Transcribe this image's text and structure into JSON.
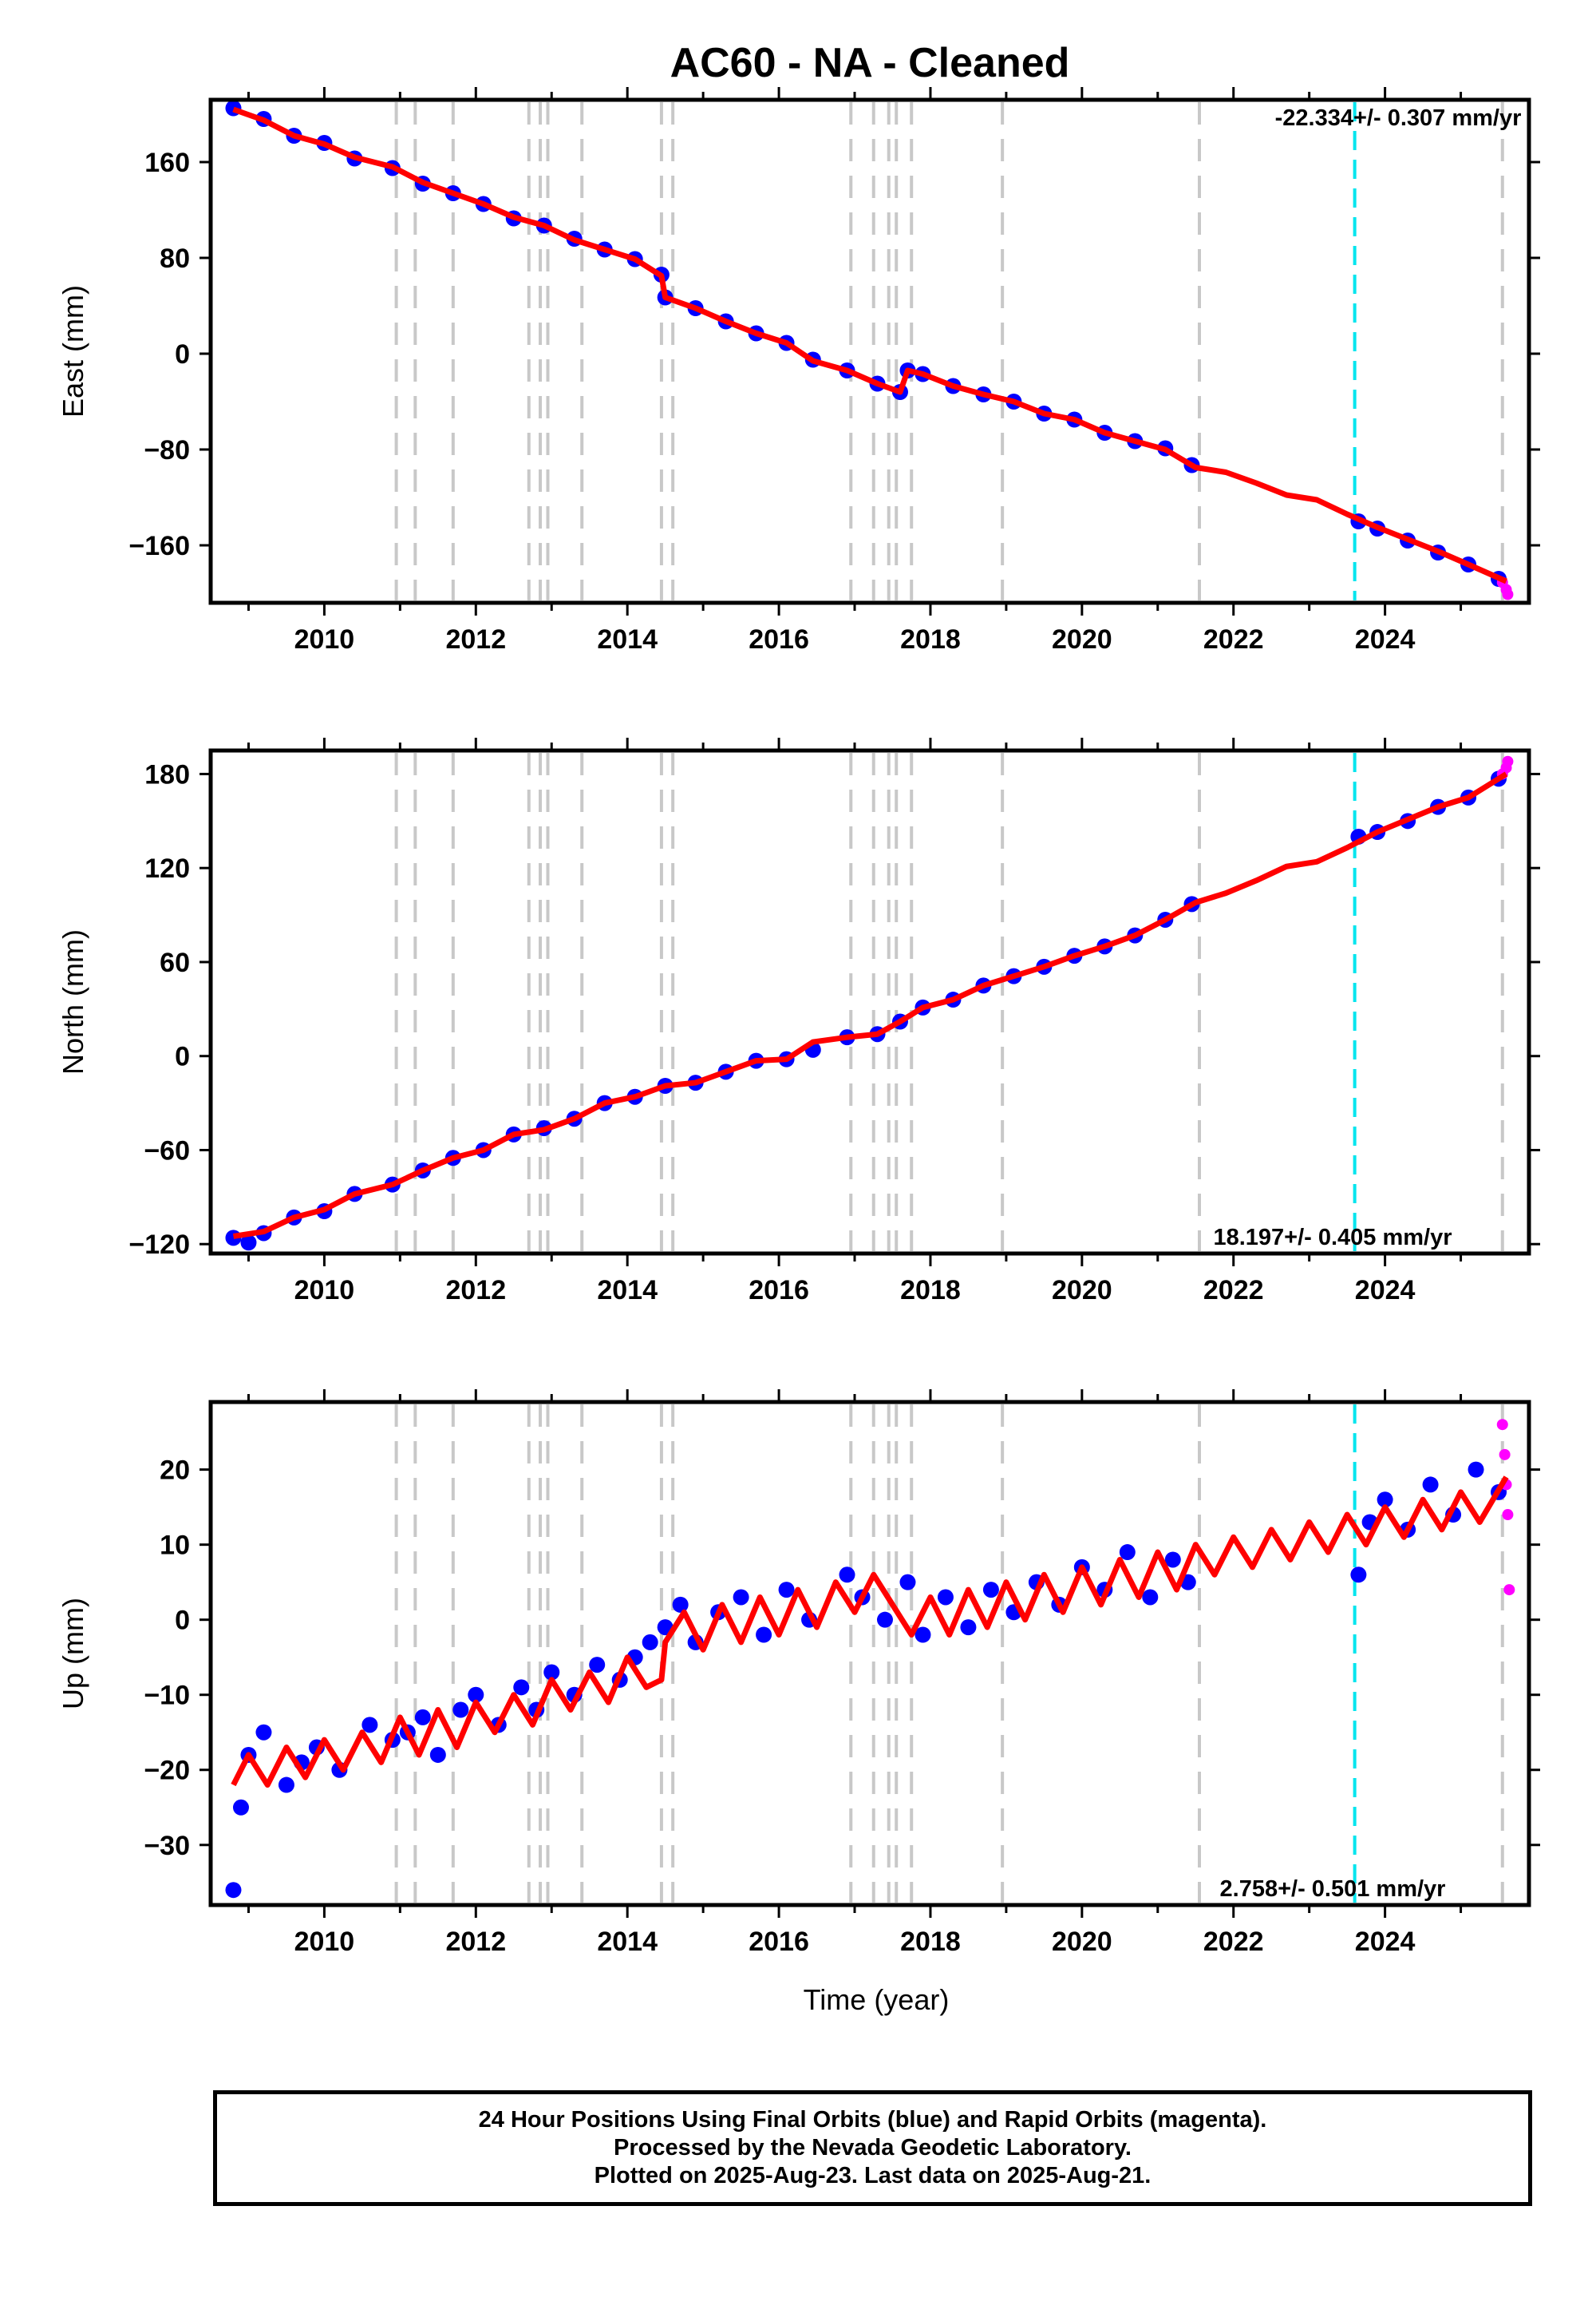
{
  "title": "AC60  - NA - Cleaned",
  "colors": {
    "final_orbits": "#0000ff",
    "rapid_orbits": "#ff00ff",
    "model": "#ff0000",
    "breaks": "#c8c8c8",
    "last_equipment_change": "#00e5ee"
  },
  "chart_data": [
    {
      "type": "scatter",
      "name": "east",
      "ylabel": "East (mm)",
      "xlabel": "",
      "xlim": [
        2008.5,
        2025.9
      ],
      "ylim": [
        -208,
        212
      ],
      "yticks": [
        160,
        80,
        0,
        -80,
        -160
      ],
      "ytick_labels": [
        "160",
        "80",
        "0",
        "−80",
        "−160"
      ],
      "xticks": [
        2010,
        2012,
        2014,
        2016,
        2018,
        2020,
        2022,
        2024
      ],
      "xtick_labels": [
        "2010",
        "2012",
        "2014",
        "2016",
        "2018",
        "2020",
        "2022",
        "2024"
      ],
      "rate_label": "-22.334+/- 0.307 mm/yr",
      "rate_position": "top-right",
      "series": [
        {
          "name": "Final Orbits (blue)",
          "x": [
            2008.8,
            2009.2,
            2009.6,
            2010.0,
            2010.4,
            2010.9,
            2011.3,
            2011.7,
            2012.1,
            2012.5,
            2012.9,
            2013.3,
            2013.7,
            2014.1,
            2014.45,
            2014.5,
            2014.9,
            2015.3,
            2015.7,
            2016.1,
            2016.45,
            2016.9,
            2017.3,
            2017.6,
            2017.7,
            2017.9,
            2018.3,
            2018.7,
            2019.1,
            2019.5,
            2019.9,
            2020.3,
            2020.7,
            2021.1,
            2021.45,
            2023.65,
            2023.9,
            2024.3,
            2024.7,
            2025.1,
            2025.5
          ],
          "y": [
            205,
            196,
            182,
            176,
            163,
            155,
            142,
            134,
            125,
            113,
            107,
            96,
            87,
            79,
            66,
            47,
            38,
            27,
            17,
            9,
            -5,
            -14,
            -25,
            -32,
            -14,
            -17,
            -27,
            -34,
            -40,
            -50,
            -55,
            -66,
            -73,
            -79,
            -93,
            -140,
            -146,
            -156,
            -166,
            -176,
            -188
          ]
        },
        {
          "name": "Rapid Orbits (magenta)",
          "x": [
            2025.55,
            2025.6,
            2025.62
          ],
          "y": [
            -191,
            -197,
            -201
          ]
        }
      ],
      "model": {
        "x": [
          2008.8,
          2009.2,
          2009.6,
          2010.0,
          2010.4,
          2010.9,
          2011.3,
          2011.7,
          2012.1,
          2012.5,
          2012.9,
          2013.3,
          2013.7,
          2014.1,
          2014.45,
          2014.5,
          2014.9,
          2015.3,
          2015.7,
          2016.1,
          2016.45,
          2016.9,
          2017.3,
          2017.6,
          2017.7,
          2017.9,
          2018.3,
          2018.7,
          2019.1,
          2019.5,
          2019.9,
          2020.3,
          2020.7,
          2021.1,
          2021.5,
          2021.9,
          2022.3,
          2022.7,
          2023.1,
          2023.5,
          2023.9,
          2024.3,
          2024.7,
          2025.1,
          2025.6
        ],
        "y": [
          204,
          195,
          182,
          175,
          164,
          156,
          143,
          134,
          125,
          114,
          107,
          95,
          87,
          79,
          65,
          47,
          38,
          27,
          17,
          9,
          -6,
          -14,
          -25,
          -32,
          -14,
          -17,
          -27,
          -34,
          -40,
          -50,
          -55,
          -66,
          -73,
          -80,
          -95,
          -99,
          -108,
          -118,
          -122,
          -134,
          -145,
          -155,
          -165,
          -176,
          -190
        ]
      },
      "breaks": [
        2010.95,
        2011.2,
        2011.7,
        2012.7,
        2012.85,
        2012.95,
        2013.4,
        2014.45,
        2014.6,
        2016.95,
        2017.25,
        2017.45,
        2017.55,
        2017.75,
        2018.95,
        2021.55,
        2025.55
      ],
      "equipment_change": 2023.6
    },
    {
      "type": "scatter",
      "name": "north",
      "ylabel": "North (mm)",
      "xlabel": "",
      "xlim": [
        2008.5,
        2025.9
      ],
      "ylim": [
        -126,
        195
      ],
      "yticks": [
        180,
        120,
        60,
        0,
        -60,
        -120
      ],
      "ytick_labels": [
        "180",
        "120",
        "60",
        "0",
        "−60",
        "−120"
      ],
      "xticks": [
        2010,
        2012,
        2014,
        2016,
        2018,
        2020,
        2022,
        2024
      ],
      "xtick_labels": [
        "2010",
        "2012",
        "2014",
        "2016",
        "2018",
        "2020",
        "2022",
        "2024"
      ],
      "rate_label": "18.197+/- 0.405 mm/yr",
      "rate_position": "bottom-right",
      "series": [
        {
          "name": "Final Orbits (blue)",
          "x": [
            2008.8,
            2009.0,
            2009.2,
            2009.6,
            2010.0,
            2010.4,
            2010.9,
            2011.3,
            2011.7,
            2012.1,
            2012.5,
            2012.9,
            2013.3,
            2013.7,
            2014.1,
            2014.5,
            2014.9,
            2015.3,
            2015.7,
            2016.1,
            2016.45,
            2016.9,
            2017.3,
            2017.6,
            2017.9,
            2018.3,
            2018.7,
            2019.1,
            2019.5,
            2019.9,
            2020.3,
            2020.7,
            2021.1,
            2021.45,
            2023.65,
            2023.9,
            2024.3,
            2024.7,
            2025.1,
            2025.5
          ],
          "y": [
            -116,
            -119,
            -113,
            -103,
            -99,
            -88,
            -82,
            -73,
            -65,
            -60,
            -50,
            -46,
            -40,
            -30,
            -26,
            -19,
            -17,
            -10,
            -3,
            -2,
            4,
            12,
            14,
            22,
            31,
            36,
            45,
            51,
            57,
            64,
            70,
            77,
            87,
            97,
            140,
            143,
            150,
            159,
            165,
            177
          ]
        },
        {
          "name": "Rapid Orbits (magenta)",
          "x": [
            2025.55,
            2025.6,
            2025.62
          ],
          "y": [
            180,
            184,
            188
          ]
        }
      ],
      "model": {
        "x": [
          2008.8,
          2009.2,
          2009.6,
          2010.0,
          2010.4,
          2010.9,
          2011.3,
          2011.7,
          2012.1,
          2012.5,
          2012.9,
          2013.3,
          2013.7,
          2014.1,
          2014.5,
          2014.9,
          2015.3,
          2015.7,
          2016.1,
          2016.45,
          2016.9,
          2017.3,
          2017.6,
          2017.9,
          2018.3,
          2018.7,
          2019.1,
          2019.5,
          2019.9,
          2020.3,
          2020.7,
          2021.1,
          2021.5,
          2021.9,
          2022.3,
          2022.7,
          2023.1,
          2023.5,
          2023.9,
          2024.3,
          2024.7,
          2025.1,
          2025.6
        ],
        "y": [
          -115,
          -112,
          -103,
          -98,
          -88,
          -82,
          -73,
          -65,
          -60,
          -50,
          -47,
          -40,
          -30,
          -26,
          -19,
          -17,
          -10,
          -3,
          -2,
          9,
          12,
          14,
          22,
          31,
          36,
          45,
          51,
          57,
          64,
          70,
          77,
          87,
          98,
          104,
          112,
          121,
          124,
          133,
          143,
          151,
          159,
          165,
          180
        ]
      },
      "breaks": [
        2010.95,
        2011.2,
        2011.7,
        2012.7,
        2012.85,
        2012.95,
        2013.4,
        2014.45,
        2014.6,
        2016.95,
        2017.25,
        2017.45,
        2017.55,
        2017.75,
        2018.95,
        2021.55,
        2025.55
      ],
      "equipment_change": 2023.6
    },
    {
      "type": "scatter",
      "name": "up",
      "ylabel": "Up (mm)",
      "xlabel": "Time (year)",
      "xlim": [
        2008.5,
        2025.9
      ],
      "ylim": [
        -38,
        29
      ],
      "yticks": [
        20,
        10,
        0,
        -10,
        -20,
        -30
      ],
      "ytick_labels": [
        "20",
        "10",
        "0",
        "−10",
        "−20",
        "−30"
      ],
      "xticks": [
        2010,
        2012,
        2014,
        2016,
        2018,
        2020,
        2022,
        2024
      ],
      "xtick_labels": [
        "2010",
        "2012",
        "2014",
        "2016",
        "2018",
        "2020",
        "2022",
        "2024"
      ],
      "rate_label": "2.758+/- 0.501 mm/yr",
      "rate_position": "bottom-right",
      "series": [
        {
          "name": "Final Orbits (blue)",
          "x": [
            2008.8,
            2008.9,
            2009.0,
            2009.2,
            2009.5,
            2009.7,
            2009.9,
            2010.2,
            2010.6,
            2010.9,
            2011.1,
            2011.3,
            2011.5,
            2011.8,
            2012.0,
            2012.3,
            2012.6,
            2012.8,
            2013.0,
            2013.3,
            2013.6,
            2013.9,
            2014.1,
            2014.3,
            2014.5,
            2014.7,
            2014.9,
            2015.2,
            2015.5,
            2015.8,
            2016.1,
            2016.4,
            2016.9,
            2017.1,
            2017.4,
            2017.7,
            2017.9,
            2018.2,
            2018.5,
            2018.8,
            2019.1,
            2019.4,
            2019.7,
            2020.0,
            2020.3,
            2020.6,
            2020.9,
            2021.2,
            2021.4,
            2023.65,
            2023.8,
            2024.0,
            2024.3,
            2024.6,
            2024.9,
            2025.2,
            2025.5
          ],
          "y": [
            -36,
            -25,
            -18,
            -15,
            -22,
            -19,
            -17,
            -20,
            -14,
            -16,
            -15,
            -13,
            -18,
            -12,
            -10,
            -14,
            -9,
            -12,
            -7,
            -10,
            -6,
            -8,
            -5,
            -3,
            -1,
            2,
            -3,
            1,
            3,
            -2,
            4,
            0,
            6,
            3,
            0,
            5,
            -2,
            3,
            -1,
            4,
            1,
            5,
            2,
            7,
            4,
            9,
            3,
            8,
            5,
            6,
            13,
            16,
            12,
            18,
            14,
            20,
            17
          ]
        },
        {
          "name": "Rapid Orbits (magenta)",
          "x": [
            2025.55,
            2025.58,
            2025.6,
            2025.62,
            2025.64
          ],
          "y": [
            26,
            22,
            18,
            14,
            4
          ]
        }
      ],
      "model": {
        "x": [
          2008.8,
          2009.0,
          2009.25,
          2009.5,
          2009.75,
          2010.0,
          2010.25,
          2010.5,
          2010.75,
          2011.0,
          2011.25,
          2011.5,
          2011.75,
          2012.0,
          2012.25,
          2012.5,
          2012.75,
          2013.0,
          2013.25,
          2013.5,
          2013.75,
          2014.0,
          2014.25,
          2014.45,
          2014.5,
          2014.75,
          2015.0,
          2015.25,
          2015.5,
          2015.75,
          2016.0,
          2016.25,
          2016.5,
          2016.75,
          2017.0,
          2017.25,
          2017.5,
          2017.75,
          2018.0,
          2018.25,
          2018.5,
          2018.75,
          2019.0,
          2019.25,
          2019.5,
          2019.75,
          2020.0,
          2020.25,
          2020.5,
          2020.75,
          2021.0,
          2021.25,
          2021.5,
          2021.75,
          2022.0,
          2022.25,
          2022.5,
          2022.75,
          2023.0,
          2023.25,
          2023.5,
          2023.75,
          2024.0,
          2024.25,
          2024.5,
          2024.75,
          2025.0,
          2025.25,
          2025.6
        ],
        "y": [
          -22,
          -18,
          -22,
          -17,
          -21,
          -16,
          -20,
          -15,
          -19,
          -13,
          -18,
          -12,
          -17,
          -11,
          -15,
          -10,
          -14,
          -8,
          -12,
          -7,
          -11,
          -5,
          -9,
          -8,
          -3,
          1,
          -4,
          2,
          -3,
          3,
          -2,
          4,
          -1,
          5,
          1,
          6,
          2,
          -2,
          3,
          -2,
          4,
          -1,
          5,
          0,
          6,
          1,
          7,
          2,
          8,
          3,
          9,
          4,
          10,
          6,
          11,
          7,
          12,
          8,
          13,
          9,
          14,
          10,
          15,
          11,
          16,
          12,
          17,
          13,
          19
        ]
      },
      "breaks": [
        2010.95,
        2011.2,
        2011.7,
        2012.7,
        2012.85,
        2012.95,
        2013.4,
        2014.45,
        2014.6,
        2016.95,
        2017.25,
        2017.45,
        2017.55,
        2017.75,
        2018.95,
        2021.55,
        2025.55
      ],
      "equipment_change": 2023.6
    }
  ],
  "footer": {
    "line1": "24 Hour Positions Using Final Orbits (blue) and Rapid Orbits (magenta).",
    "line2": "Processed by the Nevada Geodetic Laboratory.",
    "line3": "Plotted on 2025-Aug-23. Last data on 2025-Aug-21."
  }
}
